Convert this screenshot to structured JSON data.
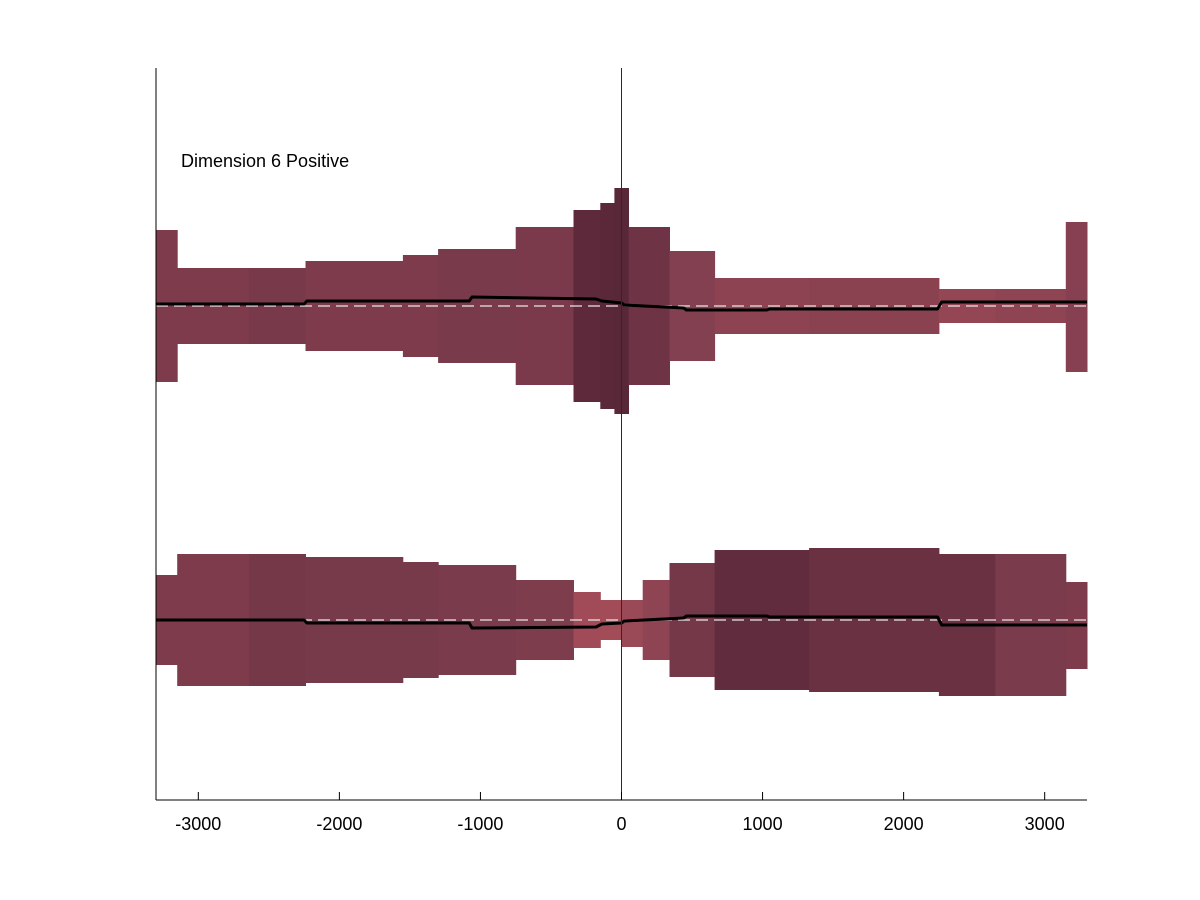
{
  "chart_data": {
    "type": "area",
    "title": "",
    "xlabel": "",
    "ylabel": "",
    "xlim": [
      -3300,
      3300
    ],
    "xticks": [
      -3000,
      -2000,
      -1000,
      0,
      1000,
      2000,
      3000
    ],
    "xtick_labels": [
      "-3000",
      "-2000",
      "-1000",
      "0",
      "1000",
      "2000",
      "3000"
    ],
    "grid": false,
    "annotation": "Dimension 6 Positive",
    "colors": {
      "center_line": "#1a1aa8",
      "mean_line": "#000000",
      "baseline_dash": "#e6e6e6",
      "axis": "#000000"
    },
    "panels": [
      {
        "name": "upper",
        "baseline": 0,
        "segments": [
          {
            "x0": -3300,
            "x1": -3150,
            "lower": -0.76,
            "upper": 0.76,
            "color": "#7d3b4c"
          },
          {
            "x0": -3150,
            "x1": -2640,
            "lower": -0.38,
            "upper": 0.38,
            "color": "#7d3b4c"
          },
          {
            "x0": -2640,
            "x1": -2240,
            "lower": -0.38,
            "upper": 0.38,
            "color": "#78394a"
          },
          {
            "x0": -2240,
            "x1": -1550,
            "lower": -0.45,
            "upper": 0.45,
            "color": "#7d3b4c"
          },
          {
            "x0": -1550,
            "x1": -1300,
            "lower": -0.51,
            "upper": 0.51,
            "color": "#7d3b4c"
          },
          {
            "x0": -1300,
            "x1": -750,
            "lower": -0.57,
            "upper": 0.57,
            "color": "#793a4b"
          },
          {
            "x0": -750,
            "x1": -340,
            "lower": -0.79,
            "upper": 0.79,
            "color": "#7a3a4b"
          },
          {
            "x0": -340,
            "x1": -150,
            "lower": -0.96,
            "upper": 0.96,
            "color": "#5e2a3b"
          },
          {
            "x0": -150,
            "x1": -50,
            "lower": -1.03,
            "upper": 1.03,
            "color": "#5a2839"
          },
          {
            "x0": -50,
            "x1": 50,
            "lower": -1.08,
            "upper": 1.18,
            "color": "#582738"
          },
          {
            "x0": 50,
            "x1": 340,
            "lower": -0.79,
            "upper": 0.79,
            "color": "#6e3345"
          },
          {
            "x0": 340,
            "x1": 660,
            "lower": -0.55,
            "upper": 0.55,
            "color": "#834050"
          },
          {
            "x0": 660,
            "x1": 1330,
            "lower": -0.28,
            "upper": 0.28,
            "color": "#8e4352"
          },
          {
            "x0": 1330,
            "x1": 2250,
            "lower": -0.28,
            "upper": 0.28,
            "color": "#8a4251"
          },
          {
            "x0": 2250,
            "x1": 2650,
            "lower": -0.17,
            "upper": 0.17,
            "color": "#944655"
          },
          {
            "x0": 2650,
            "x1": 3150,
            "lower": -0.17,
            "upper": 0.17,
            "color": "#8f4454"
          },
          {
            "x0": 3150,
            "x1": 3300,
            "lower": -0.66,
            "upper": 0.84,
            "color": "#874051"
          }
        ],
        "mean_line": [
          [
            -3300,
            0.02
          ],
          [
            -2250,
            0.02
          ],
          [
            -2230,
            0.05
          ],
          [
            -1080,
            0.05
          ],
          [
            -1060,
            0.09
          ],
          [
            -180,
            0.07
          ],
          [
            -140,
            0.05
          ],
          [
            0,
            0.03
          ],
          [
            20,
            0.01
          ],
          [
            160,
            0.0
          ],
          [
            440,
            -0.02
          ],
          [
            460,
            -0.04
          ],
          [
            1030,
            -0.04
          ],
          [
            1050,
            -0.03
          ],
          [
            2240,
            -0.03
          ],
          [
            2270,
            0.04
          ],
          [
            3300,
            0.04
          ]
        ]
      },
      {
        "name": "lower",
        "baseline": 0,
        "segments": [
          {
            "x0": -3300,
            "x1": -3150,
            "lower": -0.45,
            "upper": 0.45,
            "color": "#7d3b4c"
          },
          {
            "x0": -3150,
            "x1": -2640,
            "lower": -0.66,
            "upper": 0.66,
            "color": "#7d3b4c"
          },
          {
            "x0": -2640,
            "x1": -2240,
            "lower": -0.66,
            "upper": 0.66,
            "color": "#743849"
          },
          {
            "x0": -2240,
            "x1": -1550,
            "lower": -0.63,
            "upper": 0.63,
            "color": "#773a4a"
          },
          {
            "x0": -1550,
            "x1": -1300,
            "lower": -0.58,
            "upper": 0.58,
            "color": "#763a4a"
          },
          {
            "x0": -1300,
            "x1": -750,
            "lower": -0.55,
            "upper": 0.55,
            "color": "#7a3b4c"
          },
          {
            "x0": -750,
            "x1": -340,
            "lower": -0.4,
            "upper": 0.4,
            "color": "#7e3d4d"
          },
          {
            "x0": -340,
            "x1": -150,
            "lower": -0.28,
            "upper": 0.28,
            "color": "#a04b57"
          },
          {
            "x0": -150,
            "x1": 0,
            "lower": -0.2,
            "upper": 0.2,
            "color": "#a24c58"
          },
          {
            "x0": 0,
            "x1": 150,
            "lower": -0.27,
            "upper": 0.2,
            "color": "#9a4957"
          },
          {
            "x0": 150,
            "x1": 340,
            "lower": -0.4,
            "upper": 0.4,
            "color": "#8e4453"
          },
          {
            "x0": 340,
            "x1": 660,
            "lower": -0.57,
            "upper": 0.57,
            "color": "#743848"
          },
          {
            "x0": 660,
            "x1": 1330,
            "lower": -0.7,
            "upper": 0.7,
            "color": "#612c3d"
          },
          {
            "x0": 1330,
            "x1": 2250,
            "lower": -0.72,
            "upper": 0.72,
            "color": "#6a3142"
          },
          {
            "x0": 2250,
            "x1": 2650,
            "lower": -0.76,
            "upper": 0.66,
            "color": "#6a3143"
          },
          {
            "x0": 2650,
            "x1": 3150,
            "lower": -0.76,
            "upper": 0.66,
            "color": "#7a3b4c"
          },
          {
            "x0": 3150,
            "x1": 3300,
            "lower": -0.49,
            "upper": 0.38,
            "color": "#7d3b4c"
          }
        ],
        "mean_line": [
          [
            -3300,
            0.0
          ],
          [
            -2250,
            0.0
          ],
          [
            -2230,
            -0.03
          ],
          [
            -1080,
            -0.03
          ],
          [
            -1060,
            -0.08
          ],
          [
            -180,
            -0.07
          ],
          [
            -140,
            -0.04
          ],
          [
            0,
            -0.03
          ],
          [
            20,
            -0.01
          ],
          [
            160,
            0.0
          ],
          [
            440,
            0.02
          ],
          [
            460,
            0.04
          ],
          [
            1030,
            0.04
          ],
          [
            1050,
            0.03
          ],
          [
            2240,
            0.03
          ],
          [
            2270,
            -0.05
          ],
          [
            3300,
            -0.05
          ]
        ]
      }
    ]
  }
}
